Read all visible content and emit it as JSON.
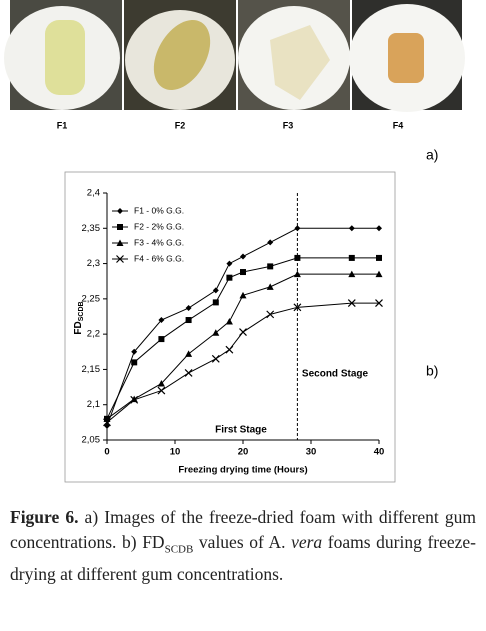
{
  "photos": {
    "labels": [
      "F1",
      "F2",
      "F3",
      "F4"
    ]
  },
  "panel_labels": [
    "a)",
    "b)"
  ],
  "chart_data": {
    "type": "line",
    "y_label": "FD",
    "y_label_subscript": "SCDB",
    "x_label": "Freezing drying time (Hours)",
    "x": [
      0,
      4,
      8,
      12,
      16,
      18,
      20,
      24,
      28,
      36,
      40
    ],
    "series": [
      {
        "name": "F1 - 0% G.G.",
        "color": "#000000",
        "marker": "diamond",
        "values": [
          2.07,
          2.175,
          2.22,
          2.237,
          2.262,
          2.3,
          2.31,
          2.33,
          2.35,
          2.35,
          2.35
        ]
      },
      {
        "name": "F2 - 2% G.G.",
        "color": "#000000",
        "marker": "square",
        "values": [
          2.08,
          2.16,
          2.193,
          2.22,
          2.245,
          2.28,
          2.288,
          2.296,
          2.308,
          2.308,
          2.308
        ]
      },
      {
        "name": "F3 - 4% G.G.",
        "color": "#000000",
        "marker": "triangle",
        "values": [
          2.08,
          2.108,
          2.13,
          2.172,
          2.202,
          2.218,
          2.255,
          2.267,
          2.285,
          2.285,
          2.285
        ]
      },
      {
        "name": "F4 - 6% G.G.",
        "color": "#000000",
        "marker": "x",
        "values": [
          2.075,
          2.107,
          2.12,
          2.145,
          2.165,
          2.178,
          2.203,
          2.228,
          2.238,
          2.244,
          2.244
        ]
      }
    ],
    "xlim": [
      0,
      40
    ],
    "xticks": [
      0,
      10,
      20,
      30,
      40
    ],
    "ylim": [
      2.05,
      2.4
    ],
    "yticks": [
      {
        "value": 2.05,
        "label": "2,05"
      },
      {
        "value": 2.1,
        "label": "2,1"
      },
      {
        "value": 2.15,
        "label": "2,15"
      },
      {
        "value": 2.2,
        "label": "2,2"
      },
      {
        "value": 2.25,
        "label": "2,25"
      },
      {
        "value": 2.3,
        "label": "2,3"
      },
      {
        "value": 2.35,
        "label": "2,35"
      },
      {
        "value": 2.4,
        "label": "2,4"
      }
    ],
    "grid": false,
    "legend": "upper-left",
    "stage_divider_x": 28,
    "annotations": [
      "First Stage",
      "Second Stage"
    ]
  },
  "caption": {
    "label": "Figure 6.",
    "text1": " a) Images of the freeze-dried foam with different gum concentrations. b) FD",
    "sub": "SCDB",
    "text2": " values of A. ",
    "italic": "vera",
    "text3": " foams during freeze-drying at different gum concentrations."
  }
}
